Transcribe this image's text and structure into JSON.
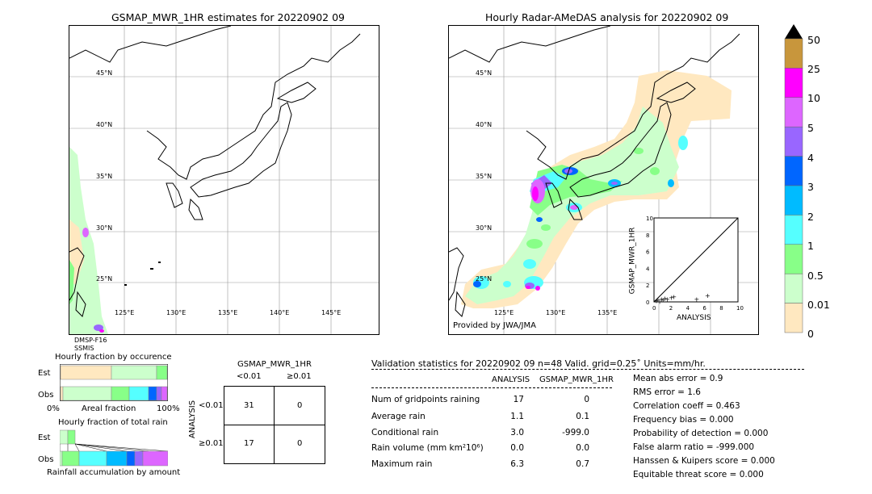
{
  "left_map": {
    "title": "GSMAP_MWR_1HR estimates for 20220902 09",
    "lat_labels": [
      "45°N",
      "40°N",
      "35°N",
      "30°N",
      "25°N"
    ],
    "lon_labels": [
      "125°E",
      "130°E",
      "135°E",
      "140°E",
      "145°E"
    ],
    "satellite_labels": [
      "DMSP-F16",
      "SSMIS"
    ]
  },
  "right_map": {
    "title": "Hourly Radar-AMeDAS analysis for 20220902 09",
    "lat_labels": [
      "45°N",
      "40°N",
      "35°N",
      "30°N",
      "25°N"
    ],
    "lon_labels": [
      "125°E",
      "130°E",
      "135°E"
    ],
    "credit": "Provided by JWA/JMA"
  },
  "colorbar": {
    "labels": [
      "50",
      "25",
      "10",
      "5",
      "4",
      "3",
      "2",
      "1",
      "0.5",
      "0.01",
      "0"
    ],
    "colors": [
      "#c8963c",
      "#ff00ff",
      "#dd66ff",
      "#9966ff",
      "#0066ff",
      "#00bbff",
      "#55ffff",
      "#88ff88",
      "#ccffcc",
      "#ffe8c0"
    ]
  },
  "inset_scatter": {
    "xlabel": "ANALYSIS",
    "ylabel": "GSMAP_MWR_1HR",
    "ticks": [
      "0",
      "2",
      "4",
      "6",
      "8",
      "10"
    ],
    "top_tick": "10"
  },
  "chart_data": [
    {
      "type": "scatter",
      "title": "",
      "xlabel": "ANALYSIS",
      "ylabel": "GSMAP_MWR_1HR",
      "xlim": [
        0,
        10
      ],
      "ylim": [
        0,
        10
      ],
      "x": [
        0.2,
        0.4,
        0.6,
        0.8,
        1.0,
        1.2,
        1.5,
        2.0,
        2.3,
        5.0,
        6.3
      ],
      "y": [
        0.1,
        0.2,
        0.0,
        0.3,
        0.2,
        0.4,
        0.3,
        0.5,
        0.6,
        0.3,
        0.7
      ]
    },
    {
      "type": "bar",
      "title": "Hourly fraction by occurence",
      "xlabel": "Areal fraction",
      "categories": [
        "Est",
        "Obs"
      ],
      "x_tick_labels": [
        "0%",
        "100%"
      ]
    },
    {
      "type": "bar",
      "title": "Hourly fraction of total rain",
      "xlabel": "Rainfall accumulation by amount",
      "categories": [
        "Est",
        "Obs"
      ]
    }
  ],
  "occurrence": {
    "title": "Hourly fraction by occurence",
    "rows": [
      "Est",
      "Obs"
    ],
    "xlabel": "Areal fraction",
    "x0": "0%",
    "x1": "100%"
  },
  "total_rain": {
    "title": "Hourly fraction of total rain",
    "rows": [
      "Est",
      "Obs"
    ],
    "xlabel": "Rainfall accumulation by amount"
  },
  "contingency": {
    "title": "GSMAP_MWR_1HR",
    "col_lt": "<0.01",
    "col_ge": "≥0.01",
    "row_axis": "ANALYSIS",
    "row_lt": "<0.01",
    "row_ge": "≥0.01",
    "cells": [
      "31",
      "0",
      "17",
      "0"
    ]
  },
  "validation": {
    "header": "Validation statistics for 20220902 09  n=48 Valid. grid=0.25˚ Units=mm/hr.",
    "col_analysis": "ANALYSIS",
    "col_gsmap": "GSMAP_MWR_1HR",
    "rows": [
      {
        "label": "Num of gridpoints raining",
        "a": "17",
        "g": "0"
      },
      {
        "label": "Average rain",
        "a": "1.1",
        "g": "0.1"
      },
      {
        "label": "Conditional rain",
        "a": "3.0",
        "g": "-999.0"
      },
      {
        "label": "Rain volume (mm km²10⁶)",
        "a": "0.0",
        "g": "0.0"
      },
      {
        "label": "Maximum rain",
        "a": "6.3",
        "g": "0.7"
      }
    ],
    "scores": [
      "Mean abs error =    0.9",
      "RMS error =    1.6",
      "Correlation coeff =  0.463",
      "Frequency bias =  0.000",
      "Probability of detection =  0.000",
      "False alarm ratio = -999.000",
      "Hanssen & Kuipers score =  0.000",
      "Equitable threat score =  0.000"
    ]
  }
}
